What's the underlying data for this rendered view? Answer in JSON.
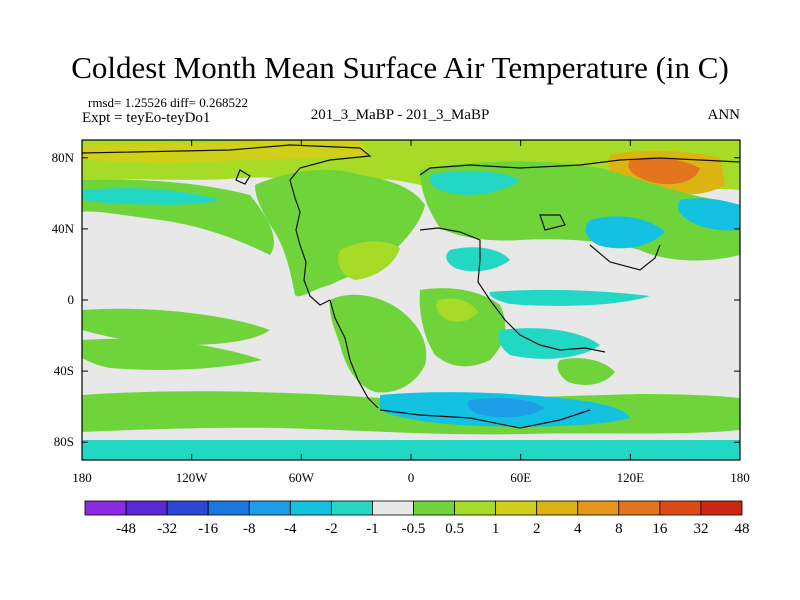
{
  "title": "Coldest Month Mean Surface Air Temperature (in C)",
  "stats": "rmsd= 1.25526 diff= 0.268522",
  "experiment": "Expt = teyEo-teyDo1",
  "comparison": "201_3_MaBP - 201_3_MaBP",
  "season": "ANN",
  "axes": {
    "lon_range": [
      -180,
      180
    ],
    "lat_range": [
      -90,
      90
    ],
    "x_ticks": [
      {
        "value": -180,
        "label": "180"
      },
      {
        "value": -120,
        "label": "120W"
      },
      {
        "value": -60,
        "label": "60W"
      },
      {
        "value": 0,
        "label": "0"
      },
      {
        "value": 60,
        "label": "60E"
      },
      {
        "value": 120,
        "label": "120E"
      },
      {
        "value": 180,
        "label": "180"
      }
    ],
    "y_ticks": [
      {
        "value": 80,
        "label": "80N"
      },
      {
        "value": 40,
        "label": "40N"
      },
      {
        "value": 0,
        "label": "0"
      },
      {
        "value": -40,
        "label": "40S"
      },
      {
        "value": -80,
        "label": "80S"
      }
    ]
  },
  "colorbar": {
    "colors": [
      "#8a2be2",
      "#5b28d8",
      "#2e46d6",
      "#1a78e0",
      "#1e9ee8",
      "#12c2e0",
      "#22d8c4",
      "#e8e8e8",
      "#6fd43a",
      "#a6dc28",
      "#d0d01a",
      "#dcb412",
      "#e6961a",
      "#e4741e",
      "#dc4a18",
      "#cc2610"
    ],
    "labels": [
      "-48",
      "-32",
      "-16",
      "-8",
      "-4",
      "-2",
      "-1",
      "-0.5",
      "0.5",
      "1",
      "2",
      "4",
      "8",
      "16",
      "32",
      "48"
    ]
  },
  "colors": {
    "background_field": "#e8e8e8",
    "coast": "#111111"
  }
}
